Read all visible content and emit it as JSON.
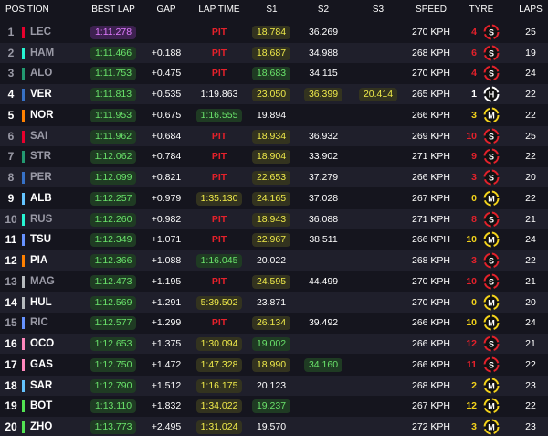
{
  "header": [
    "POSITION",
    "BEST LAP",
    "GAP",
    "LAP TIME",
    "S1",
    "S2",
    "S3",
    "SPEED",
    "TYRE",
    "LAPS"
  ],
  "rows": [
    {
      "pos": "1",
      "team": "#e8002d",
      "dim": true,
      "driver": "LEC",
      "best": "1:11.278",
      "best_style": "p",
      "lap": "PIT",
      "lap_style": "pit",
      "s1": "18.784",
      "s1_style": "y",
      "s2": "36.269",
      "speed": "270 KPH",
      "age": "4",
      "tyre": "S",
      "laps": "25"
    },
    {
      "pos": "2",
      "team": "#27f4d2",
      "dim": true,
      "driver": "HAM",
      "best": "1:11.466",
      "best_style": "g",
      "gap": "+0.188",
      "lap": "PIT",
      "lap_style": "pit",
      "s1": "18.687",
      "s1_style": "y",
      "s2": "34.988",
      "speed": "268 KPH",
      "age": "6",
      "tyre": "S",
      "laps": "19"
    },
    {
      "pos": "3",
      "team": "#229971",
      "dim": true,
      "driver": "ALO",
      "best": "1:11.753",
      "best_style": "g",
      "gap": "+0.475",
      "lap": "PIT",
      "lap_style": "pit",
      "s1": "18.683",
      "s1_style": "g",
      "s2": "34.115",
      "speed": "270 KPH",
      "age": "4",
      "tyre": "S",
      "laps": "24"
    },
    {
      "pos": "4",
      "team": "#3671c6",
      "driver": "VER",
      "best": "1:11.813",
      "best_style": "g",
      "gap": "+0.535",
      "lap": "1:19.863",
      "s1": "23.050",
      "s1_style": "y",
      "s2": "36.399",
      "s2_style": "y",
      "s3": "20.414",
      "s3_style": "y",
      "speed": "265 KPH",
      "age": "1",
      "tyre": "H",
      "laps": "22"
    },
    {
      "pos": "5",
      "team": "#ff8000",
      "driver": "NOR",
      "best": "1:11.953",
      "best_style": "g",
      "gap": "+0.675",
      "lap": "1:16.555",
      "lap_style": "g",
      "s1": "19.894",
      "speed": "266 KPH",
      "age": "3",
      "tyre": "M",
      "laps": "22"
    },
    {
      "pos": "6",
      "team": "#e8002d",
      "dim": true,
      "driver": "SAI",
      "best": "1:11.962",
      "best_style": "g",
      "gap": "+0.684",
      "lap": "PIT",
      "lap_style": "pit",
      "s1": "18.934",
      "s1_style": "y",
      "s2": "36.932",
      "speed": "269 KPH",
      "age": "10",
      "tyre": "S",
      "laps": "25"
    },
    {
      "pos": "7",
      "team": "#229971",
      "dim": true,
      "driver": "STR",
      "best": "1:12.062",
      "best_style": "g",
      "gap": "+0.784",
      "lap": "PIT",
      "lap_style": "pit",
      "s1": "18.904",
      "s1_style": "y",
      "s2": "33.902",
      "speed": "271 KPH",
      "age": "9",
      "tyre": "S",
      "laps": "22"
    },
    {
      "pos": "8",
      "team": "#3671c6",
      "dim": true,
      "driver": "PER",
      "best": "1:12.099",
      "best_style": "g",
      "gap": "+0.821",
      "lap": "PIT",
      "lap_style": "pit",
      "s1": "22.653",
      "s1_style": "y",
      "s2": "37.279",
      "speed": "266 KPH",
      "age": "3",
      "tyre": "S",
      "laps": "20"
    },
    {
      "pos": "9",
      "team": "#64c4ff",
      "driver": "ALB",
      "best": "1:12.257",
      "best_style": "g",
      "gap": "+0.979",
      "lap": "1:35.130",
      "lap_style": "y",
      "s1": "24.165",
      "s1_style": "y",
      "s2": "37.028",
      "speed": "267 KPH",
      "age": "0",
      "tyre": "M",
      "laps": "22"
    },
    {
      "pos": "10",
      "team": "#27f4d2",
      "dim": true,
      "driver": "RUS",
      "best": "1:12.260",
      "best_style": "g",
      "gap": "+0.982",
      "lap": "PIT",
      "lap_style": "pit",
      "s1": "18.943",
      "s1_style": "y",
      "s2": "36.088",
      "speed": "271 KPH",
      "age": "8",
      "tyre": "S",
      "laps": "21"
    },
    {
      "pos": "11",
      "team": "#6692ff",
      "driver": "TSU",
      "best": "1:12.349",
      "best_style": "g",
      "gap": "+1.071",
      "lap": "PIT",
      "lap_style": "pit",
      "s1": "22.967",
      "s1_style": "y",
      "s2": "38.511",
      "speed": "266 KPH",
      "age": "10",
      "tyre": "M",
      "laps": "24"
    },
    {
      "pos": "12",
      "team": "#ff8000",
      "driver": "PIA",
      "best": "1:12.366",
      "best_style": "g",
      "gap": "+1.088",
      "lap": "1:16.045",
      "lap_style": "g",
      "s1": "20.022",
      "speed": "268 KPH",
      "age": "3",
      "tyre": "S",
      "laps": "22"
    },
    {
      "pos": "13",
      "team": "#b6babd",
      "dim": true,
      "driver": "MAG",
      "best": "1:12.473",
      "best_style": "g",
      "gap": "+1.195",
      "lap": "PIT",
      "lap_style": "pit",
      "s1": "24.595",
      "s1_style": "y",
      "s2": "44.499",
      "speed": "270 KPH",
      "age": "10",
      "tyre": "S",
      "laps": "21"
    },
    {
      "pos": "14",
      "team": "#b6babd",
      "driver": "HUL",
      "best": "1:12.569",
      "best_style": "g",
      "gap": "+1.291",
      "lap": "5:39.502",
      "lap_style": "y",
      "s1": "23.871",
      "speed": "270 KPH",
      "age": "0",
      "tyre": "M",
      "laps": "20"
    },
    {
      "pos": "15",
      "team": "#6692ff",
      "dim": true,
      "driver": "RIC",
      "best": "1:12.577",
      "best_style": "g",
      "gap": "+1.299",
      "lap": "PIT",
      "lap_style": "pit",
      "s1": "26.134",
      "s1_style": "y",
      "s2": "39.492",
      "speed": "266 KPH",
      "age": "10",
      "tyre": "M",
      "laps": "24"
    },
    {
      "pos": "16",
      "team": "#ff87bc",
      "driver": "OCO",
      "best": "1:12.653",
      "best_style": "g",
      "gap": "+1.375",
      "lap": "1:30.094",
      "lap_style": "y",
      "s1": "19.002",
      "s1_style": "g",
      "speed": "266 KPH",
      "age": "12",
      "tyre": "S",
      "laps": "21"
    },
    {
      "pos": "17",
      "team": "#ff87bc",
      "driver": "GAS",
      "best": "1:12.750",
      "best_style": "g",
      "gap": "+1.472",
      "lap": "1:47.328",
      "lap_style": "y",
      "s1": "18.990",
      "s1_style": "y",
      "s2": "34.160",
      "s2_style": "g",
      "speed": "266 KPH",
      "age": "11",
      "tyre": "S",
      "laps": "22"
    },
    {
      "pos": "18",
      "team": "#64c4ff",
      "driver": "SAR",
      "best": "1:12.790",
      "best_style": "g",
      "gap": "+1.512",
      "lap": "1:16.175",
      "lap_style": "y",
      "s1": "20.123",
      "speed": "268 KPH",
      "age": "2",
      "tyre": "M",
      "laps": "23"
    },
    {
      "pos": "19",
      "team": "#52e252",
      "driver": "BOT",
      "best": "1:13.110",
      "best_style": "g",
      "gap": "+1.832",
      "lap": "1:34.022",
      "lap_style": "y",
      "s1": "19.237",
      "s1_style": "g",
      "speed": "267 KPH",
      "age": "12",
      "tyre": "M",
      "laps": "22"
    },
    {
      "pos": "20",
      "team": "#52e252",
      "driver": "ZHO",
      "best": "1:13.773",
      "best_style": "g",
      "gap": "+2.495",
      "lap": "1:31.024",
      "lap_style": "y",
      "s1": "19.570",
      "speed": "272 KPH",
      "age": "3",
      "tyre": "M",
      "laps": "23"
    }
  ]
}
